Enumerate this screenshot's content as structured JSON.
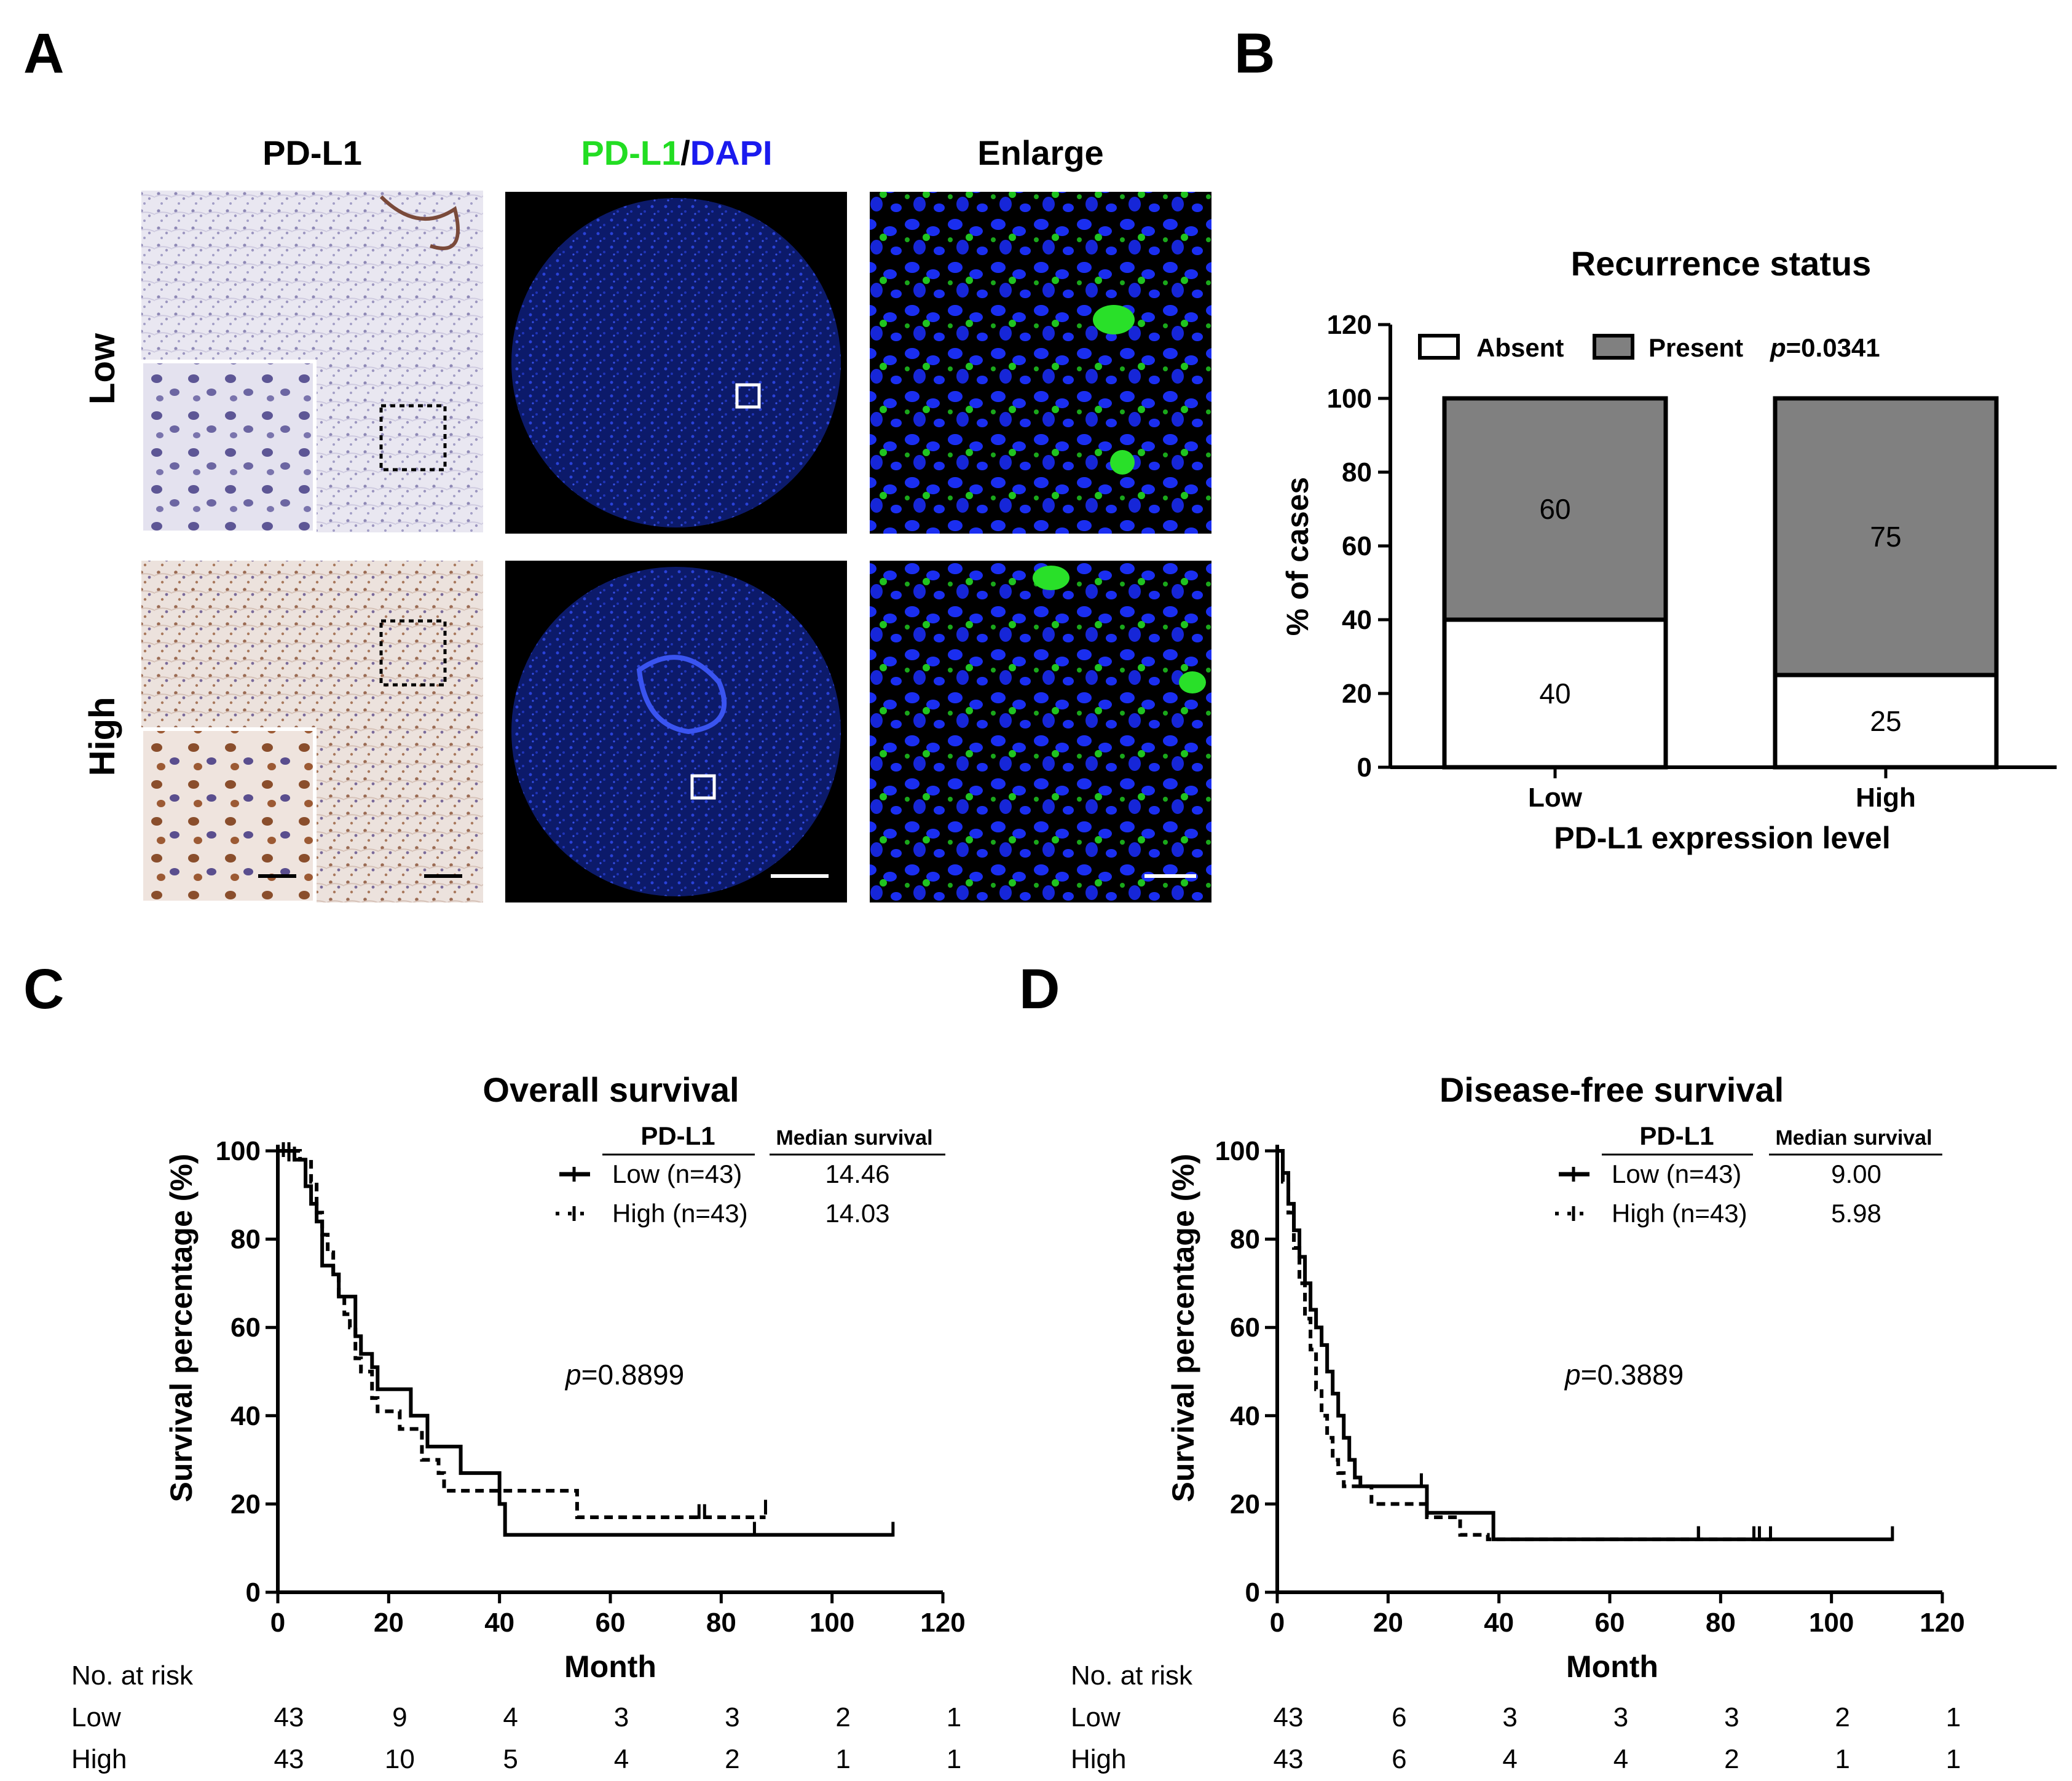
{
  "panels": {
    "a": "A",
    "b": "B",
    "c": "C",
    "d": "D"
  },
  "panel_a": {
    "col_headers": {
      "ihc": "PD-L1",
      "if_green": "PD-L1",
      "if_sep": "/",
      "if_blue": "DAPI",
      "enlarge": "Enlarge"
    },
    "row_headers": [
      "Low",
      "High"
    ],
    "colors": {
      "green": "#22dd22",
      "blue": "#1a1aee"
    }
  },
  "chart_data": [
    {
      "type": "bar",
      "stacked": true,
      "title": "Recurrence status",
      "xlabel": "PD-L1 expression level",
      "ylabel": "% of cases",
      "ylim": [
        0,
        120
      ],
      "yticks": [
        0,
        20,
        40,
        60,
        80,
        100,
        120
      ],
      "categories": [
        "Low",
        "High"
      ],
      "series": [
        {
          "name": "Absent",
          "values": [
            40,
            25
          ],
          "color": "#ffffff"
        },
        {
          "name": "Present",
          "values": [
            60,
            75
          ],
          "color": "#808080"
        }
      ],
      "annotation": {
        "italic": "p",
        "rest": "=0.0341"
      },
      "legend_position": "top"
    },
    {
      "type": "line",
      "subtype": "kaplan-meier",
      "title": "Overall survival",
      "xlabel": "Month",
      "ylabel": "Survival percentage (%)",
      "xlim": [
        0,
        120
      ],
      "ylim": [
        0,
        100
      ],
      "xticks": [
        0,
        20,
        40,
        60,
        80,
        100,
        120
      ],
      "yticks": [
        0,
        20,
        40,
        60,
        80,
        100
      ],
      "legend_header": {
        "group": "PD-L1",
        "median": "Median survival"
      },
      "series": [
        {
          "name": "Low (n=43)",
          "median": "14.46",
          "dash": false,
          "points": [
            [
              0,
              100
            ],
            [
              3,
              98
            ],
            [
              5,
              92
            ],
            [
              6,
              88
            ],
            [
              7,
              84
            ],
            [
              8,
              74
            ],
            [
              10,
              72
            ],
            [
              11,
              67
            ],
            [
              14,
              58
            ],
            [
              15,
              54
            ],
            [
              17,
              51
            ],
            [
              18,
              46
            ],
            [
              21,
              46
            ],
            [
              23,
              46
            ],
            [
              24,
              40
            ],
            [
              26,
              40
            ],
            [
              27,
              33
            ],
            [
              32,
              33
            ],
            [
              33,
              27
            ],
            [
              39,
              27
            ],
            [
              40,
              20
            ],
            [
              41,
              13
            ],
            [
              86,
              13
            ],
            [
              111,
              13
            ]
          ],
          "censors": [
            [
              1,
              100
            ],
            [
              2,
              100
            ],
            [
              86,
              14
            ],
            [
              111,
              14
            ]
          ]
        },
        {
          "name": "High (n=43)",
          "median": "14.03",
          "dash": true,
          "points": [
            [
              0,
              100
            ],
            [
              4,
              98
            ],
            [
              6,
              93
            ],
            [
              7,
              86
            ],
            [
              8,
              81
            ],
            [
              9,
              77
            ],
            [
              10,
              72
            ],
            [
              11,
              67
            ],
            [
              12,
              63
            ],
            [
              13,
              60
            ],
            [
              14,
              53
            ],
            [
              15,
              50
            ],
            [
              17,
              44
            ],
            [
              18,
              41
            ],
            [
              22,
              37
            ],
            [
              25,
              37
            ],
            [
              26,
              30
            ],
            [
              29,
              27
            ],
            [
              30,
              23
            ],
            [
              53,
              23
            ],
            [
              54,
              17
            ],
            [
              88,
              17
            ]
          ],
          "censors": [
            [
              2,
              99
            ],
            [
              3,
              99
            ],
            [
              76,
              18
            ],
            [
              77,
              18
            ],
            [
              88,
              19
            ]
          ]
        }
      ],
      "annotation": {
        "italic": "p",
        "rest": "=0.8899"
      },
      "risk_table": {
        "header": "No. at risk",
        "rows": [
          {
            "label": "Low",
            "values": [
              "43",
              "9",
              "4",
              "3",
              "3",
              "2",
              "1"
            ]
          },
          {
            "label": "High",
            "values": [
              "43",
              "10",
              "5",
              "4",
              "2",
              "1",
              "1"
            ]
          }
        ]
      }
    },
    {
      "type": "line",
      "subtype": "kaplan-meier",
      "title": "Disease-free survival",
      "xlabel": "Month",
      "ylabel": "Survival percentage (%)",
      "xlim": [
        0,
        120
      ],
      "ylim": [
        0,
        100
      ],
      "xticks": [
        0,
        20,
        40,
        60,
        80,
        100,
        120
      ],
      "yticks": [
        0,
        20,
        40,
        60,
        80,
        100
      ],
      "legend_header": {
        "group": "PD-L1",
        "median": "Median survival"
      },
      "series": [
        {
          "name": "Low (n=43)",
          "median": "9.00",
          "dash": false,
          "points": [
            [
              0,
              100
            ],
            [
              1,
              95
            ],
            [
              2,
              88
            ],
            [
              3,
              82
            ],
            [
              4,
              76
            ],
            [
              5,
              70
            ],
            [
              6,
              64
            ],
            [
              7,
              60
            ],
            [
              8,
              56
            ],
            [
              9,
              50
            ],
            [
              10,
              45
            ],
            [
              11,
              40
            ],
            [
              12,
              35
            ],
            [
              13,
              30
            ],
            [
              14,
              26
            ],
            [
              15,
              24
            ],
            [
              26,
              24
            ],
            [
              27,
              18
            ],
            [
              38,
              18
            ],
            [
              39,
              12
            ],
            [
              111,
              12
            ]
          ],
          "censors": [
            [
              26,
              25
            ],
            [
              76,
              13
            ],
            [
              87,
              13
            ],
            [
              111,
              13
            ]
          ]
        },
        {
          "name": "High (n=43)",
          "median": "5.98",
          "dash": true,
          "points": [
            [
              0,
              100
            ],
            [
              1,
              93
            ],
            [
              2,
              86
            ],
            [
              3,
              78
            ],
            [
              4,
              70
            ],
            [
              5,
              62
            ],
            [
              6,
              55
            ],
            [
              7,
              46
            ],
            [
              8,
              40
            ],
            [
              9,
              35
            ],
            [
              10,
              30
            ],
            [
              11,
              27
            ],
            [
              12,
              24
            ],
            [
              16,
              24
            ],
            [
              17,
              20
            ],
            [
              26,
              20
            ],
            [
              27,
              17
            ],
            [
              32,
              17
            ],
            [
              33,
              13
            ],
            [
              38,
              12
            ],
            [
              89,
              12
            ]
          ],
          "censors": [
            [
              76,
              13
            ],
            [
              86,
              13
            ],
            [
              89,
              13
            ]
          ]
        }
      ],
      "annotation": {
        "italic": "p",
        "rest": "=0.3889"
      },
      "risk_table": {
        "header": "No. at risk",
        "rows": [
          {
            "label": "Low",
            "values": [
              "43",
              "6",
              "3",
              "3",
              "3",
              "2",
              "1"
            ]
          },
          {
            "label": "High",
            "values": [
              "43",
              "6",
              "4",
              "4",
              "2",
              "1",
              "1"
            ]
          }
        ]
      }
    }
  ]
}
